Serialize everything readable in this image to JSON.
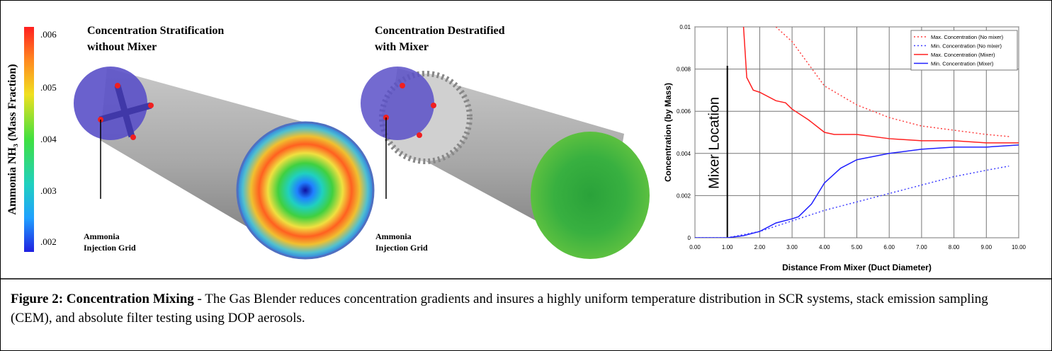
{
  "colorbar": {
    "title": "Ammonia NH₃ (Mass Fraction)",
    "labels": [
      ".006",
      ".005",
      ".004",
      ".003",
      ".002"
    ]
  },
  "panels": [
    {
      "title_lines": [
        "Concentration Stratification",
        "without Mixer"
      ],
      "callout_lines": [
        "Ammonia",
        "Injection Grid"
      ]
    },
    {
      "title_lines": [
        "Concentration Destratified",
        "with  Mixer"
      ],
      "callout_lines": [
        "Ammonia",
        "Injection Grid"
      ]
    }
  ],
  "chart_data": {
    "type": "line",
    "x_label": "Distance From Mixer (Duct Diameter)",
    "y_label": "Concentration (by Mass)",
    "annotation": "Mixer Location",
    "annotation_x": 1,
    "xlim": [
      0,
      10
    ],
    "xticks": [
      {
        "value": 0,
        "label": "0.00"
      },
      {
        "value": 1,
        "label": "1.00"
      },
      {
        "value": 2,
        "label": "2.00"
      },
      {
        "value": 3,
        "label": "3.00"
      },
      {
        "value": 4,
        "label": "4.00"
      },
      {
        "value": 5,
        "label": "5.00"
      },
      {
        "value": 6,
        "label": "6.00"
      },
      {
        "value": 7,
        "label": "7.00"
      },
      {
        "value": 8,
        "label": "8.00"
      },
      {
        "value": 9,
        "label": "9.00"
      },
      {
        "value": 10,
        "label": "10.00"
      }
    ],
    "ylim": [
      0,
      0.01
    ],
    "yticks": [
      0,
      0.002,
      0.004,
      0.006,
      0.008,
      0.01
    ],
    "grid": true,
    "legend": "top-right",
    "series": [
      {
        "name": "Max. Concentration (No mixer)",
        "color": "#ff4040",
        "dashed": true,
        "x": [
          2.5,
          3,
          4,
          5,
          6,
          7,
          8,
          9,
          9.7
        ],
        "values": [
          0.01,
          0.0093,
          0.0072,
          0.0063,
          0.0057,
          0.0053,
          0.0051,
          0.0049,
          0.0048
        ]
      },
      {
        "name": "Min. Concentration (No mixer)",
        "color": "#4040ff",
        "dashed": true,
        "x": [
          0,
          1,
          2,
          3,
          4,
          5,
          6,
          7,
          8,
          9,
          9.7
        ],
        "values": [
          0,
          0,
          0.0003,
          0.0008,
          0.0013,
          0.0017,
          0.0021,
          0.0025,
          0.0029,
          0.0032,
          0.0034
        ]
      },
      {
        "name": "Max. Concentration (Mixer)",
        "color": "#ff2020",
        "dashed": false,
        "x": [
          1.5,
          1.6,
          1.8,
          2,
          2.5,
          2.8,
          3,
          3.5,
          4,
          4.3,
          5,
          6,
          7,
          8,
          9,
          10
        ],
        "values": [
          0.01,
          0.0076,
          0.007,
          0.0069,
          0.0065,
          0.0064,
          0.0061,
          0.0056,
          0.005,
          0.0049,
          0.0049,
          0.0047,
          0.0046,
          0.0046,
          0.0045,
          0.0045
        ]
      },
      {
        "name": "Min. Concentration (Mixer)",
        "color": "#2020ff",
        "dashed": false,
        "x": [
          0,
          1,
          1.5,
          2,
          2.5,
          3,
          3.2,
          3.6,
          4,
          4.5,
          5,
          6,
          7,
          8,
          9,
          10
        ],
        "values": [
          0,
          0,
          0.0001,
          0.0003,
          0.0007,
          0.0009,
          0.001,
          0.0016,
          0.0026,
          0.0033,
          0.0037,
          0.004,
          0.0042,
          0.0043,
          0.0043,
          0.0044
        ]
      }
    ]
  },
  "caption": {
    "label": "Figure 2:  Concentration Mixing",
    "text": " - The Gas Blender reduces concentration gradients and insures a highly uniform temperature distribution in SCR systems, stack emission sampling (CEM), and absolute filter testing using DOP aerosols."
  }
}
